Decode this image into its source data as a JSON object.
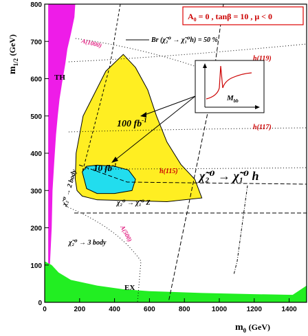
{
  "chart_data": {
    "type": "area",
    "xlabel": "m",
    "xlabel_sub": "0",
    "xunit": "(GeV)",
    "ylabel": "m",
    "ylabel_sub": "1/2",
    "yunit": "(GeV)",
    "xlim": [
      0,
      1500
    ],
    "ylim": [
      0,
      800
    ],
    "xticks": [
      "0",
      "200",
      "400",
      "600",
      "800",
      "1000",
      "1200",
      "1400"
    ],
    "yticks": [
      "0",
      "100",
      "200",
      "300",
      "400",
      "500",
      "600",
      "700",
      "800"
    ],
    "legend_box": "A",
    "legend_box_sub": "0",
    "legend_box_rest": " = 0 ,  tanβ = 10 ,  μ < 0",
    "colors": {
      "th_region": "#ee1ce8",
      "ex_region": "#22ee22",
      "fb100_region": "#ffee22",
      "fb10_region": "#22ddee",
      "red_text": "#cc0000",
      "magenta_text": "#e0197d",
      "legend_border": "#dd0000"
    },
    "regions": {
      "th_label": "TH",
      "ex_label": "EX",
      "fb100_label": "100 fb",
      "fb100_sup": "-1",
      "fb10_label": "10 fb",
      "fb10_sup": "-1",
      "th_boundary": [
        [
          20,
          800
        ],
        [
          175,
          800
        ],
        [
          170,
          765
        ],
        [
          150,
          720
        ],
        [
          130,
          680
        ],
        [
          118,
          640
        ],
        [
          100,
          590
        ],
        [
          85,
          545
        ],
        [
          75,
          500
        ],
        [
          65,
          450
        ],
        [
          55,
          380
        ],
        [
          45,
          300
        ],
        [
          40,
          200
        ],
        [
          30,
          100
        ],
        [
          20,
          0
        ]
      ],
      "fb100_boundary": [
        [
          185,
          300
        ],
        [
          215,
          285
        ],
        [
          300,
          275
        ],
        [
          700,
          270
        ],
        [
          900,
          280
        ],
        [
          860,
          330
        ],
        [
          780,
          370
        ],
        [
          700,
          430
        ],
        [
          640,
          500
        ],
        [
          590,
          570
        ],
        [
          520,
          630
        ],
        [
          450,
          665
        ],
        [
          350,
          620
        ],
        [
          220,
          500
        ],
        [
          180,
          400
        ],
        [
          175,
          330
        ]
      ],
      "fb10_boundary": [
        [
          215,
          350
        ],
        [
          240,
          305
        ],
        [
          300,
          292
        ],
        [
          400,
          292
        ],
        [
          500,
          300
        ],
        [
          520,
          330
        ],
        [
          480,
          355
        ],
        [
          400,
          365
        ],
        [
          300,
          368
        ],
        [
          240,
          365
        ]
      ]
    },
    "contours": {
      "h119_label": "h(119)",
      "h117_label": "h(117)",
      "h115_label": "h(115)",
      "A1000_label": "A(1000)",
      "A500_label": "A(500)",
      "br_label": "Br (χ̃₂⁰ → χ̃₁⁰h) = 50 %",
      "decay_h": "χ̃₂⁰ → χ̃₁⁰  h",
      "decay_z": "χ̃₂⁰ → χ̃₁⁰ Z",
      "decay_2body": "χ̃₂⁰ → 2 body",
      "decay_3body": "χ̃₂⁰ → 3 body"
    },
    "inset": {
      "xlabel": "M",
      "xlabel_sub": "bb"
    },
    "grid": false
  }
}
